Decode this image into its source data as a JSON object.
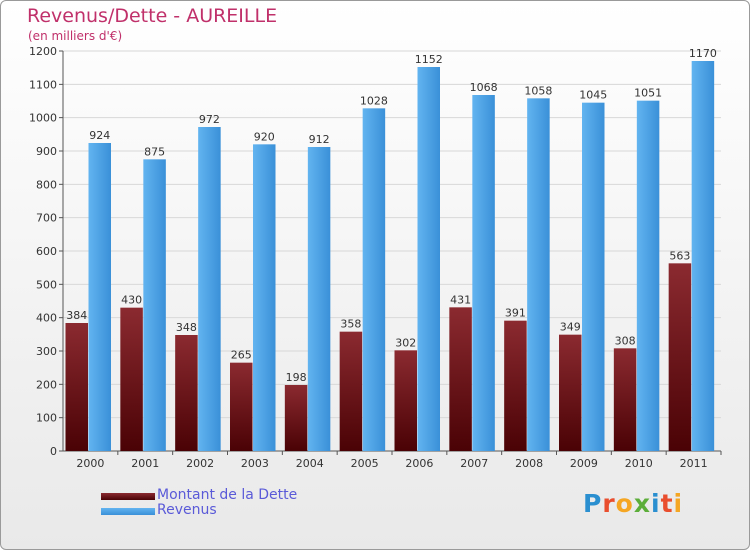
{
  "title": "Revenus/Dette - AUREILLE",
  "unit_label": "(en milliers d'€)",
  "logo": {
    "text": "Proxiti",
    "letters": [
      {
        "ch": "P",
        "color": "#2a8fd0"
      },
      {
        "ch": "r",
        "color": "#e94e2e"
      },
      {
        "ch": "o",
        "color": "#f5a623"
      },
      {
        "ch": "x",
        "color": "#5cae3a"
      },
      {
        "ch": "i",
        "color": "#2a8fd0"
      },
      {
        "ch": "t",
        "color": "#e94e2e"
      },
      {
        "ch": "i",
        "color": "#f5a623"
      }
    ]
  },
  "chart_data": {
    "type": "bar",
    "title": "Revenus/Dette - AUREILLE",
    "subtitle": "(en milliers d'€)",
    "categories": [
      "2000",
      "2001",
      "2002",
      "2003",
      "2004",
      "2005",
      "2006",
      "2007",
      "2008",
      "2009",
      "2010",
      "2011"
    ],
    "series": [
      {
        "name": "Montant de la Dette",
        "color": "#7a1a1f",
        "values": [
          384,
          430,
          348,
          265,
          198,
          358,
          302,
          431,
          391,
          349,
          308,
          563
        ]
      },
      {
        "name": "Revenus",
        "color": "#4a9fe0",
        "values": [
          924,
          875,
          972,
          920,
          912,
          1028,
          1152,
          1068,
          1058,
          1045,
          1051,
          1170
        ]
      }
    ],
    "ylim": [
      0,
      1200
    ],
    "yticks": [
      "0",
      "100",
      "200",
      "300",
      "400",
      "500",
      "600",
      "700",
      "800",
      "900",
      "1000",
      "1100",
      "1200"
    ],
    "grid": true,
    "legend_position": "bottom-left"
  }
}
